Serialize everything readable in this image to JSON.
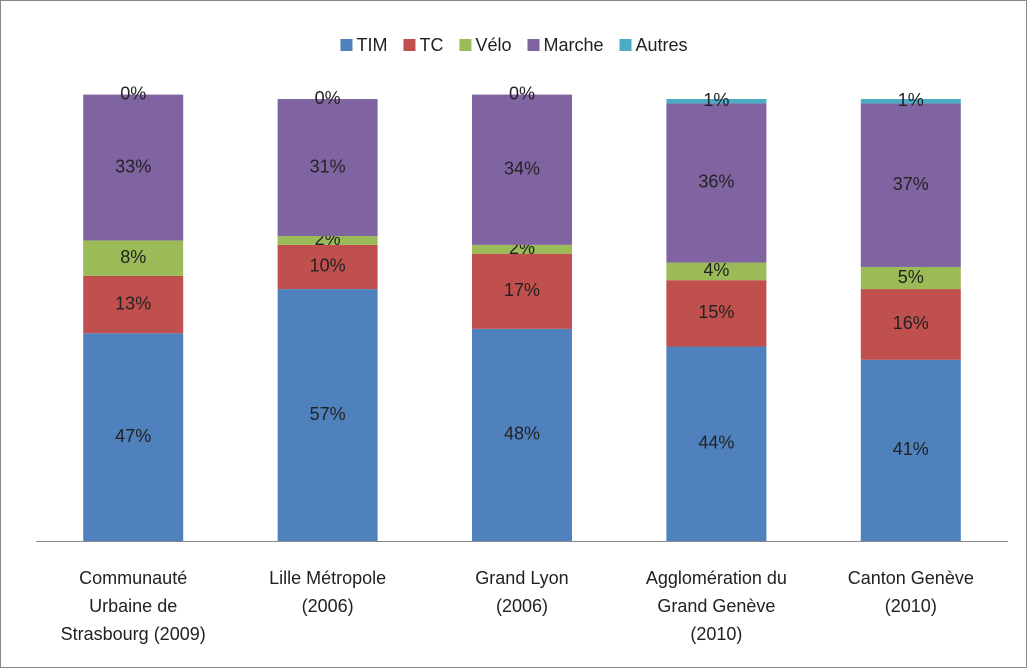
{
  "chart_data": {
    "type": "stacked_bar",
    "categories": [
      "Communauté\nUrbaine de\nStrasbourg (2009)",
      "Lille Métropole\n(2006)",
      "Grand Lyon\n(2006)",
      "Agglomération du\nGrand Genève\n(2010)",
      "Canton Genève\n(2010)"
    ],
    "series": [
      {
        "name": "TIM",
        "color": "#4f81bd",
        "values": [
          47,
          57,
          48,
          44,
          41
        ],
        "value_labels": [
          "47%",
          "57%",
          "48%",
          "44%",
          "41%"
        ]
      },
      {
        "name": "TC",
        "color": "#c0504d",
        "values": [
          13,
          10,
          17,
          15,
          16
        ],
        "value_labels": [
          "13%",
          "10%",
          "17%",
          "15%",
          "16%"
        ]
      },
      {
        "name": "Vélo",
        "color": "#9bbb59",
        "values": [
          8,
          2,
          2,
          4,
          5
        ],
        "value_labels": [
          "8%",
          "2%",
          "2%",
          "4%",
          "5%"
        ]
      },
      {
        "name": "Marche",
        "color": "#8064a2",
        "values": [
          33,
          31,
          34,
          36,
          37
        ],
        "value_labels": [
          "33%",
          "31%",
          "34%",
          "36%",
          "37%"
        ]
      },
      {
        "name": "Autres",
        "color": "#4bacc6",
        "values": [
          0,
          0,
          0,
          1,
          1
        ],
        "value_labels": [
          "0%",
          "0%",
          "0%",
          "1%",
          "1%"
        ]
      }
    ],
    "ylim": [
      0,
      100
    ],
    "legend": "top"
  }
}
